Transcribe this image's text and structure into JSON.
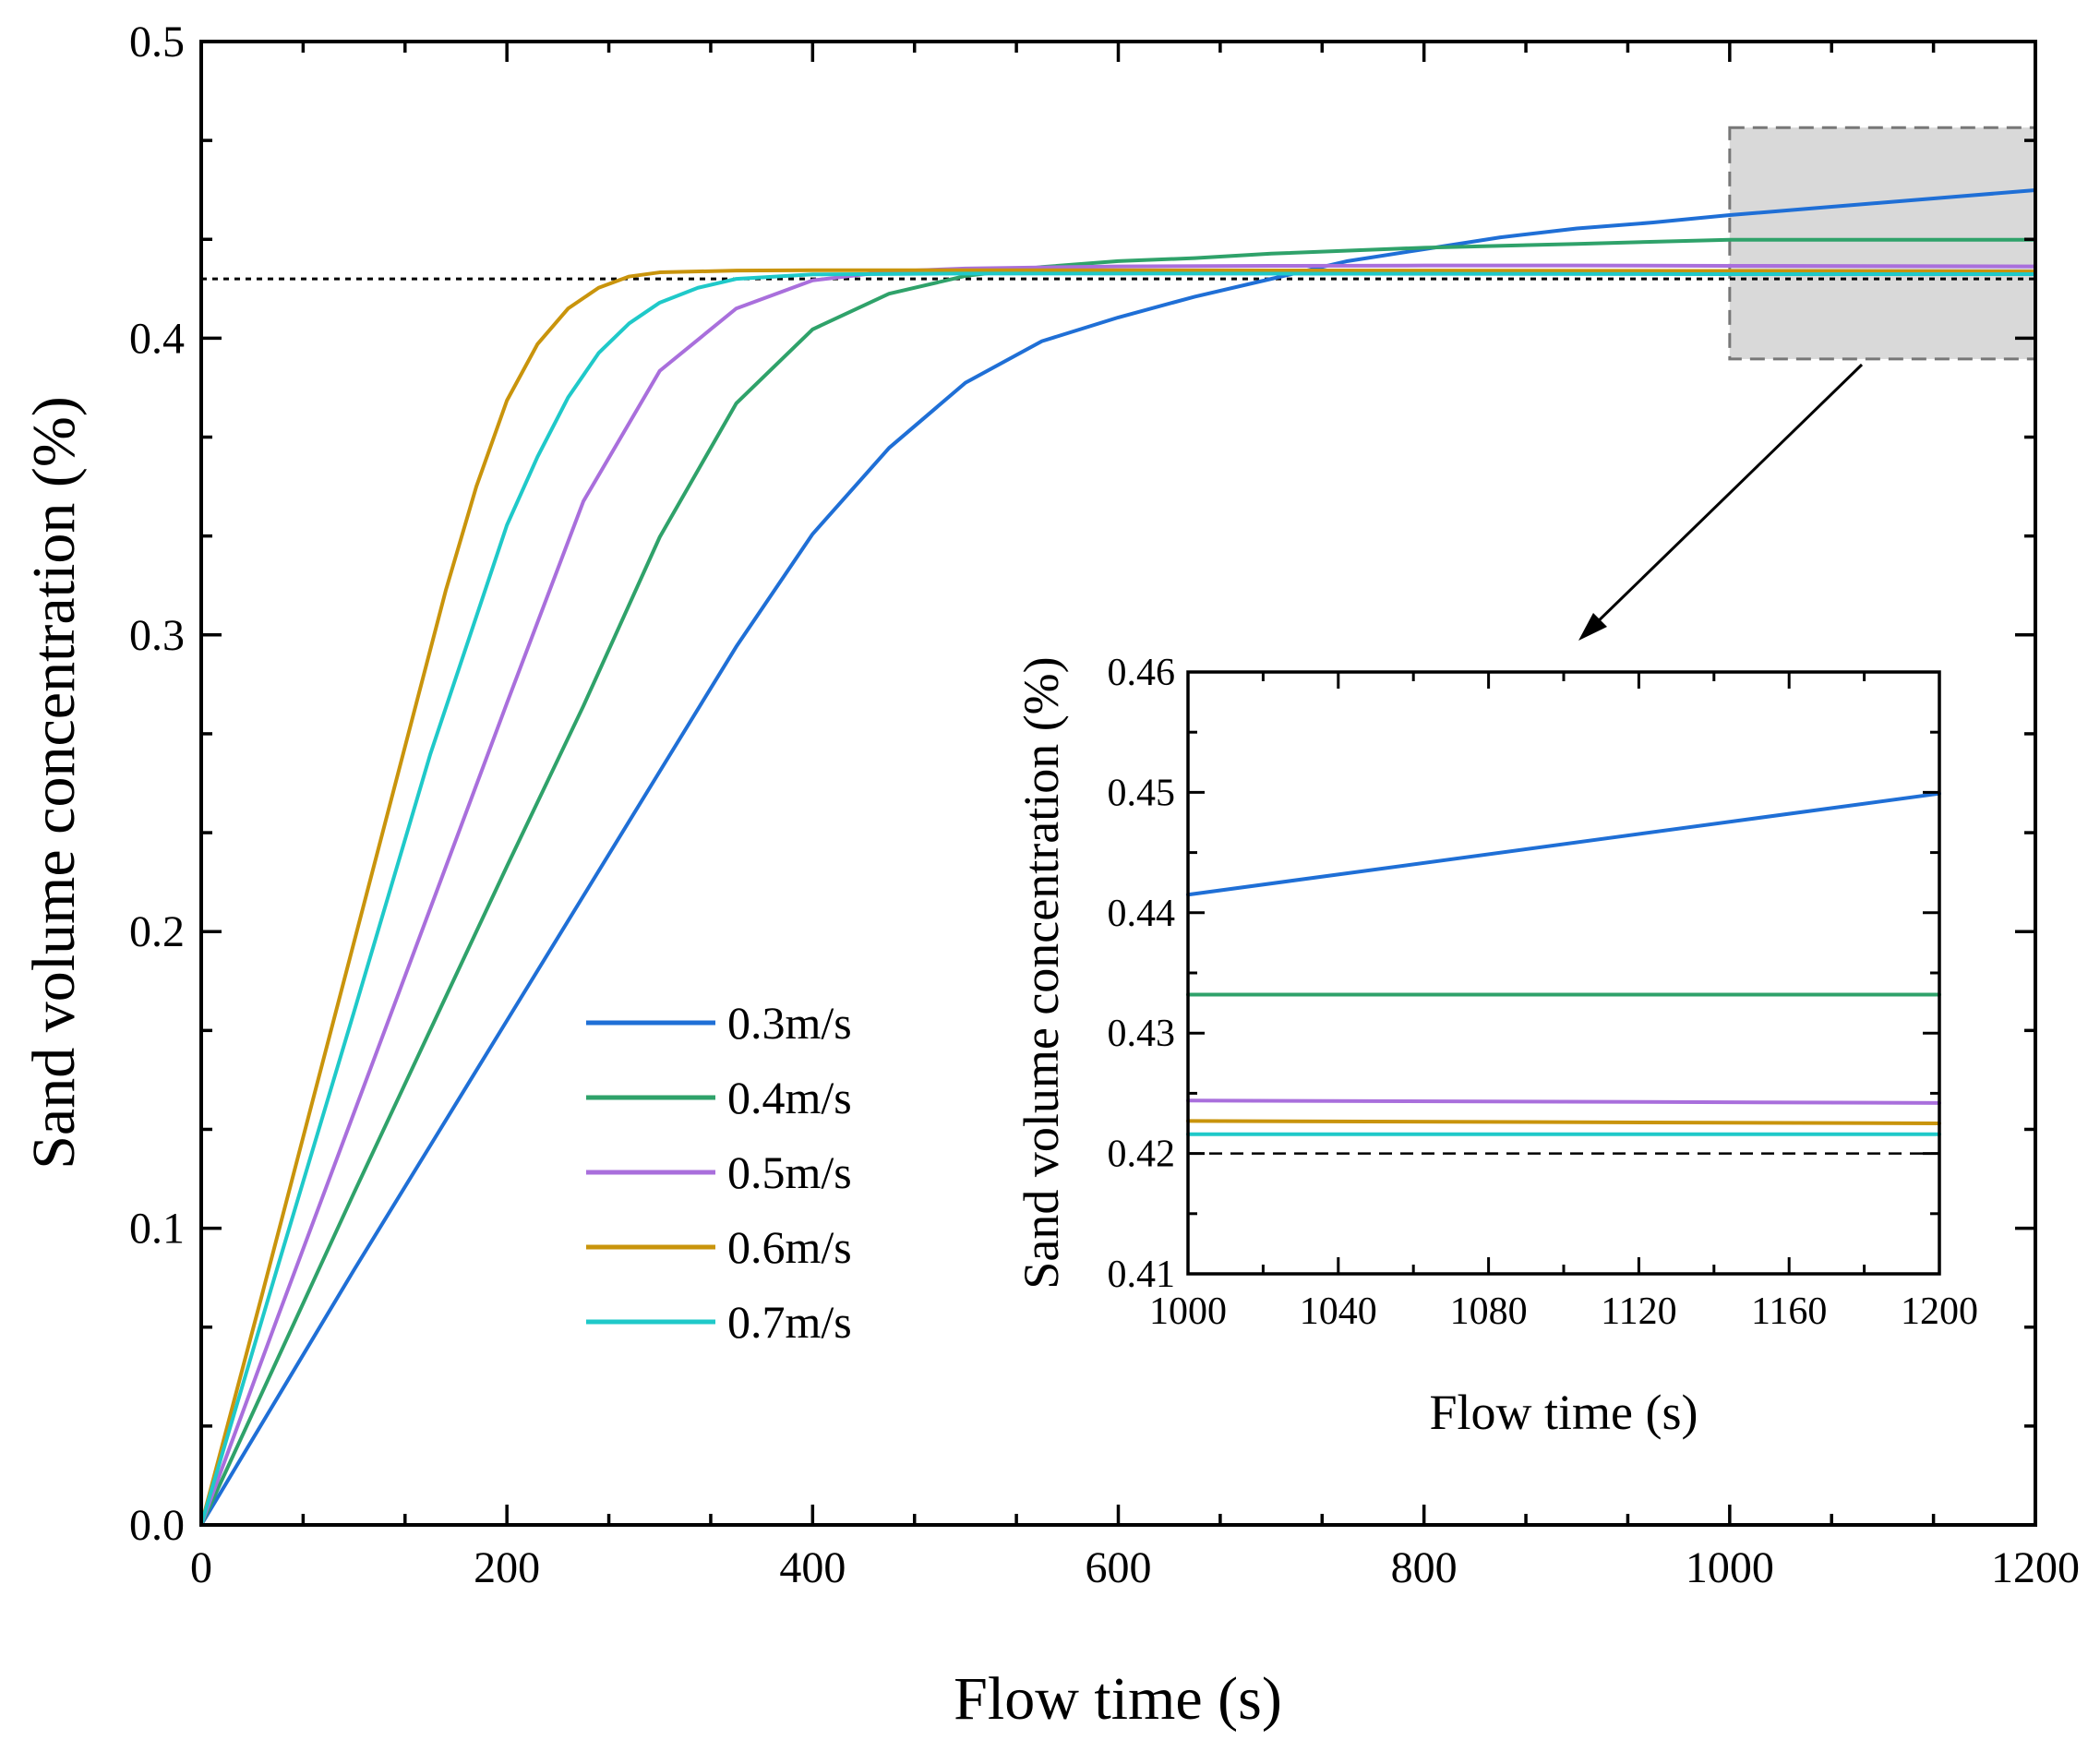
{
  "chart_data": [
    {
      "type": "line",
      "title": "",
      "xlabel": "Flow time (s)",
      "ylabel": "Sand volume concentration (%)",
      "xlim": [
        0,
        1200
      ],
      "ylim": [
        0,
        0.5
      ],
      "xticks": [
        0,
        200,
        400,
        600,
        800,
        1000,
        1200
      ],
      "yticks": [
        0.0,
        0.1,
        0.2,
        0.3,
        0.4,
        0.5
      ],
      "xtick_labels": [
        "0",
        "200",
        "400",
        "600",
        "800",
        "1000",
        "1200"
      ],
      "ytick_labels": [
        "0.0",
        "0.1",
        "0.2",
        "0.3",
        "0.4",
        "0.5"
      ],
      "reference_line": {
        "y": 0.42,
        "style": "dotted"
      },
      "zoom_box": {
        "x_range": [
          1000,
          1200
        ],
        "y_range": [
          0.393,
          0.471
        ]
      },
      "legend_position": "center",
      "series": [
        {
          "name": "0.3m/s",
          "color": "#1f6fd6",
          "x": [
            0,
            50,
            100,
            150,
            200,
            250,
            300,
            350,
            400,
            450,
            500,
            550,
            600,
            650,
            700,
            750,
            800,
            850,
            900,
            950,
            1000,
            1050,
            1100,
            1150,
            1200
          ],
          "y": [
            0,
            0.043,
            0.086,
            0.128,
            0.17,
            0.212,
            0.254,
            0.296,
            0.334,
            0.363,
            0.385,
            0.399,
            0.407,
            0.414,
            0.42,
            0.426,
            0.43,
            0.434,
            0.437,
            0.439,
            0.4415,
            0.4436,
            0.4457,
            0.4478,
            0.4499
          ]
        },
        {
          "name": "0.4m/s",
          "color": "#2fa26a",
          "x": [
            0,
            50,
            100,
            150,
            200,
            250,
            300,
            350,
            400,
            450,
            500,
            550,
            600,
            650,
            700,
            800,
            900,
            1000,
            1100,
            1200
          ],
          "y": [
            0,
            0.056,
            0.112,
            0.167,
            0.222,
            0.276,
            0.333,
            0.378,
            0.403,
            0.415,
            0.421,
            0.424,
            0.426,
            0.427,
            0.4285,
            0.4305,
            0.4318,
            0.4332,
            0.4332,
            0.4332
          ]
        },
        {
          "name": "0.5m/s",
          "color": "#a96fdc",
          "x": [
            0,
            50,
            100,
            150,
            200,
            250,
            300,
            350,
            400,
            450,
            500,
            600,
            700,
            800,
            900,
            1000,
            1100,
            1200
          ],
          "y": [
            0,
            0.07,
            0.139,
            0.208,
            0.277,
            0.345,
            0.389,
            0.41,
            0.4195,
            0.4225,
            0.4235,
            0.4242,
            0.4244,
            0.4245,
            0.4245,
            0.4244,
            0.4243,
            0.4242
          ]
        },
        {
          "name": "0.6m/s",
          "color": "#c9940c",
          "x": [
            0,
            40,
            80,
            120,
            160,
            180,
            200,
            220,
            240,
            260,
            280,
            300,
            350,
            400,
            500,
            600,
            800,
            1000,
            1100,
            1200
          ],
          "y": [
            0,
            0.078,
            0.157,
            0.236,
            0.315,
            0.35,
            0.379,
            0.398,
            0.41,
            0.417,
            0.4208,
            0.4222,
            0.4228,
            0.4229,
            0.4229,
            0.4229,
            0.4228,
            0.4227,
            0.4226,
            0.4225
          ]
        },
        {
          "name": "0.7m/s",
          "color": "#1fc9c9",
          "x": [
            0,
            50,
            100,
            150,
            200,
            220,
            240,
            260,
            280,
            300,
            325,
            350,
            400,
            500,
            600,
            800,
            1000,
            1100,
            1200
          ],
          "y": [
            0,
            0.087,
            0.173,
            0.26,
            0.337,
            0.36,
            0.38,
            0.395,
            0.405,
            0.412,
            0.417,
            0.42,
            0.4215,
            0.4218,
            0.4218,
            0.4217,
            0.4216,
            0.4216,
            0.4216
          ]
        }
      ]
    },
    {
      "type": "line",
      "title": "",
      "xlabel": "Flow time (s)",
      "ylabel": "Sand volume concentration (%)",
      "xlim": [
        1000,
        1200
      ],
      "ylim": [
        0.41,
        0.46
      ],
      "xticks": [
        1000,
        1040,
        1080,
        1120,
        1160,
        1200
      ],
      "yticks": [
        0.41,
        0.42,
        0.43,
        0.44,
        0.45,
        0.46
      ],
      "xtick_labels": [
        "1000",
        "1040",
        "1080",
        "1120",
        "1160",
        "1200"
      ],
      "ytick_labels": [
        "0.41",
        "0.42",
        "0.43",
        "0.44",
        "0.45",
        "0.46"
      ],
      "reference_line": {
        "y": 0.42,
        "style": "dashed"
      },
      "series": [
        {
          "name": "0.3m/s",
          "color": "#1f6fd6",
          "x": [
            1000,
            1200
          ],
          "y": [
            0.4415,
            0.4499
          ]
        },
        {
          "name": "0.4m/s",
          "color": "#2fa26a",
          "x": [
            1000,
            1200
          ],
          "y": [
            0.4332,
            0.4332
          ]
        },
        {
          "name": "0.5m/s",
          "color": "#a96fdc",
          "x": [
            1000,
            1200
          ],
          "y": [
            0.4244,
            0.4242
          ]
        },
        {
          "name": "0.6m/s",
          "color": "#c9940c",
          "x": [
            1000,
            1200
          ],
          "y": [
            0.4227,
            0.4225
          ]
        },
        {
          "name": "0.7m/s",
          "color": "#1fc9c9",
          "x": [
            1000,
            1200
          ],
          "y": [
            0.4216,
            0.4216
          ]
        }
      ]
    }
  ]
}
